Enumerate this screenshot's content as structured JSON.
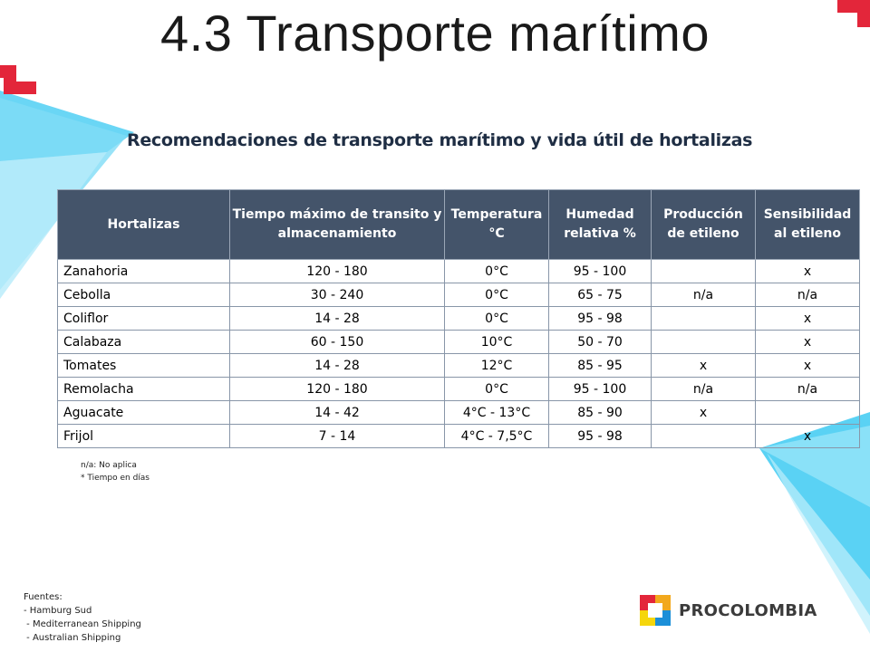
{
  "slide": {
    "title": "4.3 Transporte marítimo",
    "subtitle": "Recomendaciones de transporte marítimo y vida útil de  hortalizas"
  },
  "table": {
    "headers": [
      "Hortalizas",
      "Tiempo máximo de transito y almacenamiento",
      "Temperatura °C",
      "Humedad relativa %",
      "Producción de etileno",
      "Sensibilidad al etileno"
    ],
    "rows": [
      [
        "Zanahoria",
        "120 - 180",
        "0°C",
        "95 - 100",
        "",
        "x"
      ],
      [
        "Cebolla",
        "30 - 240",
        "0°C",
        "65 - 75",
        "n/a",
        "n/a"
      ],
      [
        "Coliflor",
        "14 - 28",
        "0°C",
        "95 - 98",
        "",
        "x"
      ],
      [
        "Calabaza",
        "60 - 150",
        "10°C",
        "50 - 70",
        "",
        "x"
      ],
      [
        "Tomates",
        "14 - 28",
        "12°C",
        "85 - 95",
        "x",
        "x"
      ],
      [
        "Remolacha",
        "120 - 180",
        "0°C",
        "95 - 100",
        "n/a",
        "n/a"
      ],
      [
        "Aguacate",
        "14 - 42",
        "4°C - 13°C",
        "85 - 90",
        "x",
        ""
      ],
      [
        "Frijol",
        "7 - 14",
        "4°C - 7,5°C",
        "95 - 98",
        "",
        "x"
      ]
    ]
  },
  "notes": {
    "na": "n/a: No aplica",
    "days": "* Tiempo en días"
  },
  "sources": {
    "heading": "Fuentes:",
    "items": [
      "- Hamburg Sud",
      " - Mediterranean Shipping",
      " - Australian Shipping"
    ]
  },
  "logo": {
    "text": "PROCOLOMBIA",
    "icon": "procolombia-logo-icon"
  },
  "colors": {
    "header_bg": "#44546a",
    "accent_red": "#e3263a",
    "accent_cyan": "#5ad2f4"
  }
}
